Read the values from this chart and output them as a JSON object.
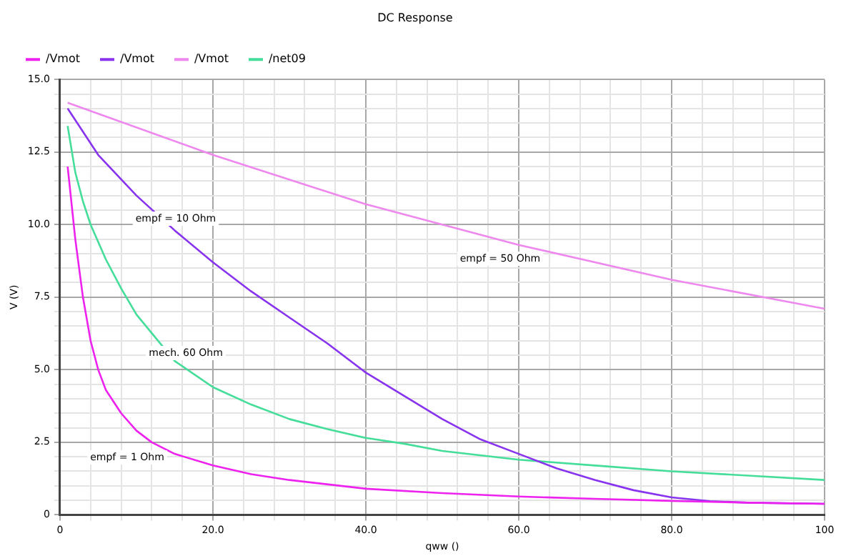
{
  "chart_data": {
    "type": "line",
    "title": "DC Response",
    "xlabel": "qww ()",
    "ylabel": "V (V)",
    "legend": "top left",
    "grid": true,
    "marker": "none",
    "line_style": "solid",
    "xlim": [
      0,
      100
    ],
    "ylim": [
      0,
      15
    ],
    "xticks": [
      0,
      {
        "value": 4,
        "label": null
      },
      {
        "value": 8,
        "label": null
      },
      {
        "value": 12,
        "label": null
      },
      {
        "value": 16,
        "label": null
      },
      {
        "value": 20,
        "label": "20.0"
      },
      {
        "value": 24,
        "label": null
      },
      {
        "value": 28,
        "label": null
      },
      {
        "value": 32,
        "label": null
      },
      {
        "value": 36,
        "label": null
      },
      {
        "value": 40,
        "label": "40.0"
      },
      {
        "value": 44,
        "label": null
      },
      {
        "value": 48,
        "label": null
      },
      {
        "value": 52,
        "label": null
      },
      {
        "value": 56,
        "label": null
      },
      {
        "value": 60,
        "label": "60.0"
      },
      {
        "value": 64,
        "label": null
      },
      {
        "value": 68,
        "label": null
      },
      {
        "value": 72,
        "label": null
      },
      {
        "value": 76,
        "label": null
      },
      {
        "value": 80,
        "label": "80.0"
      },
      {
        "value": 84,
        "label": null
      },
      {
        "value": 88,
        "label": null
      },
      {
        "value": 92,
        "label": null
      },
      {
        "value": 96,
        "label": null
      },
      100
    ],
    "yticks": [
      0,
      {
        "value": 0.5,
        "label": null
      },
      {
        "value": 1,
        "label": null
      },
      {
        "value": 1.5,
        "label": null
      },
      {
        "value": 2,
        "label": null
      },
      2.5,
      {
        "value": 3,
        "label": null
      },
      {
        "value": 3.5,
        "label": null
      },
      {
        "value": 4,
        "label": null
      },
      {
        "value": 4.5,
        "label": null
      },
      {
        "value": 5,
        "label": "5.0"
      },
      {
        "value": 5.5,
        "label": null
      },
      {
        "value": 6,
        "label": null
      },
      {
        "value": 6.5,
        "label": null
      },
      {
        "value": 7,
        "label": null
      },
      7.5,
      {
        "value": 8,
        "label": null
      },
      {
        "value": 8.5,
        "label": null
      },
      {
        "value": 9,
        "label": null
      },
      {
        "value": 9.5,
        "label": null
      },
      {
        "value": 10,
        "label": "10.0"
      },
      {
        "value": 10.5,
        "label": null
      },
      {
        "value": 11,
        "label": null
      },
      {
        "value": 11.5,
        "label": null
      },
      {
        "value": 12,
        "label": null
      },
      12.5,
      {
        "value": 13,
        "label": null
      },
      {
        "value": 13.5,
        "label": null
      },
      {
        "value": 14,
        "label": null
      },
      {
        "value": 14.5,
        "label": null
      },
      {
        "value": 15,
        "label": "15.0"
      }
    ],
    "series": [
      {
        "name": "/Vmot",
        "color": "#ee22ee",
        "x": [
          1,
          2,
          3,
          4,
          5,
          6,
          8,
          10,
          12,
          15,
          20,
          25,
          30,
          40,
          50,
          60,
          70,
          80,
          90,
          100
        ],
        "values": [
          12.0,
          9.5,
          7.5,
          6.0,
          5.0,
          4.3,
          3.5,
          2.9,
          2.5,
          2.1,
          1.7,
          1.4,
          1.2,
          0.9,
          0.75,
          0.63,
          0.55,
          0.48,
          0.42,
          0.38
        ]
      },
      {
        "name": "/Vmot",
        "color": "#8833ee",
        "x": [
          1,
          5,
          10,
          15,
          20,
          25,
          30,
          35,
          40,
          45,
          50,
          55,
          60,
          65,
          70,
          75,
          80,
          85,
          90,
          100
        ],
        "values": [
          14.0,
          12.4,
          11.0,
          9.8,
          8.7,
          7.7,
          6.8,
          5.9,
          4.9,
          4.1,
          3.3,
          2.6,
          2.1,
          1.6,
          1.2,
          0.85,
          0.6,
          0.47,
          0.42,
          0.38
        ]
      },
      {
        "name": "/Vmot",
        "color": "#ee88ee",
        "x": [
          1,
          20,
          40,
          60,
          80,
          100
        ],
        "values": [
          14.2,
          12.4,
          10.7,
          9.3,
          8.1,
          7.1
        ]
      },
      {
        "name": "/net09",
        "color": "#44dd99",
        "x": [
          1,
          2,
          3,
          4,
          6,
          8,
          10,
          15,
          20,
          25,
          30,
          35,
          40,
          45,
          50,
          60,
          70,
          80,
          90,
          100
        ],
        "values": [
          13.4,
          11.8,
          10.8,
          10.0,
          8.8,
          7.8,
          6.9,
          5.3,
          4.4,
          3.8,
          3.3,
          2.95,
          2.65,
          2.45,
          2.2,
          1.9,
          1.7,
          1.5,
          1.35,
          1.2
        ]
      }
    ],
    "annotations": [
      "empf = 10 Ohm",
      "empf = 50 Ohm",
      "mech. 60 Ohm",
      "empf = 1 Ohm"
    ]
  }
}
